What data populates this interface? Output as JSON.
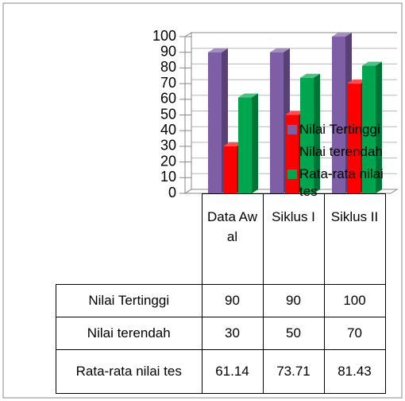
{
  "chart_data": {
    "type": "bar",
    "categories": [
      "Data Awal",
      "Siklus I",
      "Siklus II"
    ],
    "series": [
      {
        "name": "Nilai Tertinggi",
        "color": "#7e5fa6",
        "values": [
          90,
          90,
          100
        ]
      },
      {
        "name": "Nilai terendah",
        "color": "#ff0000",
        "values": [
          30,
          50,
          70
        ]
      },
      {
        "name": "Rata-rata nilai tes",
        "color": "#00a550",
        "values": [
          61.14,
          73.71,
          81.43
        ]
      }
    ],
    "ylim": [
      0,
      100
    ],
    "yticks": [
      0,
      10,
      20,
      30,
      40,
      50,
      60,
      70,
      80,
      90,
      100
    ],
    "legend": "right",
    "data_table": true
  }
}
